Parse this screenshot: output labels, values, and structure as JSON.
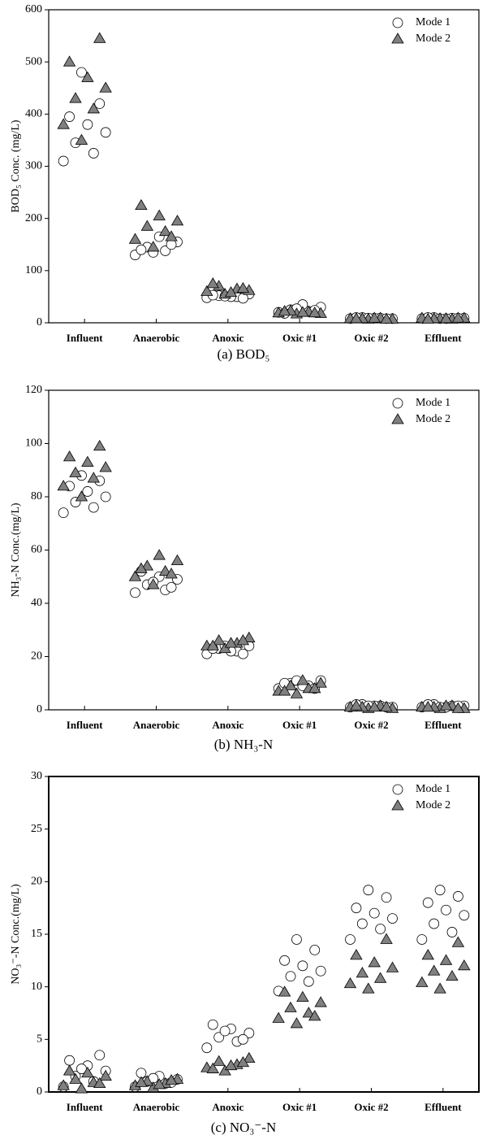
{
  "chart_data": [
    {
      "type": "scatter",
      "title": "(a)  BOD₅",
      "y_label": "BOD₅ Conc. (mg/L)",
      "categories": [
        "Influent",
        "Anaerobic",
        "Anoxic",
        "Oxic #1",
        "Oxic #2",
        "Effluent"
      ],
      "ylim": [
        0,
        600
      ],
      "yticks": [
        0,
        100,
        200,
        300,
        400,
        500,
        600
      ],
      "legend": "upper right",
      "series": [
        {
          "name": "Mode 1",
          "marker": "circle",
          "color": "#ffffff",
          "values": [
            [
              310,
              325,
              345,
              365,
              380,
              395,
              420,
              480
            ],
            [
              130,
              138,
              145,
              155,
              165,
              140,
              150,
              135
            ],
            [
              48,
              50,
              52,
              55,
              50,
              53,
              47,
              51
            ],
            [
              20,
              22,
              25,
              30,
              35,
              18,
              24,
              27
            ],
            [
              8,
              9,
              10,
              8,
              9,
              10,
              8,
              9
            ],
            [
              8,
              9,
              10,
              9,
              8,
              10,
              9,
              8
            ]
          ]
        },
        {
          "name": "Mode 2",
          "marker": "triangle",
          "color": "#808080",
          "values": [
            [
              350,
              380,
              410,
              430,
              450,
              470,
              500,
              545
            ],
            [
              145,
              160,
              175,
              185,
              195,
              205,
              225,
              165
            ],
            [
              55,
              60,
              65,
              70,
              62,
              58,
              75,
              66
            ],
            [
              17,
              19,
              21,
              23,
              18,
              20,
              22,
              19
            ],
            [
              7,
              8,
              9,
              8,
              7,
              9,
              8,
              7
            ],
            [
              8,
              9,
              7,
              8,
              9,
              8,
              7,
              9
            ]
          ]
        }
      ]
    },
    {
      "type": "scatter",
      "title": "(b)  NH₃-N",
      "y_label": "NH₃-N  Conc.(mg/L)",
      "categories": [
        "Influent",
        "Anaerobic",
        "Anoxic",
        "Oxic #1",
        "Oxic #2",
        "Effluent"
      ],
      "ylim": [
        0,
        120
      ],
      "yticks": [
        0,
        20,
        40,
        60,
        80,
        100,
        120
      ],
      "legend": "upper right",
      "series": [
        {
          "name": "Mode 1",
          "marker": "circle",
          "color": "#ffffff",
          "values": [
            [
              74,
              76,
              78,
              80,
              82,
              84,
              86,
              88
            ],
            [
              44,
              45,
              47,
              49,
              50,
              52,
              46,
              48
            ],
            [
              21,
              22,
              23,
              24,
              22,
              23,
              21,
              24
            ],
            [
              8,
              9,
              10,
              11,
              9,
              10,
              8,
              11
            ],
            [
              1,
              1.5,
              2,
              1,
              1.5,
              2,
              1,
              1.5
            ],
            [
              1,
              1.5,
              2,
              1.5,
              1,
              2,
              1.5,
              1
            ]
          ]
        },
        {
          "name": "Mode 2",
          "marker": "triangle",
          "color": "#808080",
          "values": [
            [
              80,
              84,
              87,
              89,
              91,
              93,
              95,
              99
            ],
            [
              47,
              50,
              52,
              54,
              56,
              58,
              53,
              51
            ],
            [
              23,
              24,
              25,
              26,
              27,
              25,
              24,
              26
            ],
            [
              6,
              7,
              8,
              9,
              10,
              11,
              7,
              8
            ],
            [
              0.5,
              1,
              1.5,
              1,
              0.5,
              1,
              1.5,
              1
            ],
            [
              0.5,
              1,
              1.5,
              1,
              0.5,
              1.5,
              1,
              0.5
            ]
          ]
        }
      ]
    },
    {
      "type": "scatter",
      "title": "(c)  NO₃⁻-N",
      "y_label": "NO₃⁻-N  Conc.(mg/L)",
      "categories": [
        "Influent",
        "Anaerobic",
        "Anoxic",
        "Oxic #1",
        "Oxic #2",
        "Effluent"
      ],
      "ylim": [
        0,
        30
      ],
      "yticks": [
        0,
        5,
        10,
        15,
        20,
        25,
        30
      ],
      "legend": "upper right",
      "series": [
        {
          "name": "Mode 1",
          "marker": "circle",
          "color": "#ffffff",
          "values": [
            [
              0.5,
              1,
              1.5,
              2,
              2.5,
              3,
              3.5,
              2.2
            ],
            [
              0.5,
              0.8,
              1,
              1.2,
              1.5,
              1.8,
              0.9,
              1.3
            ],
            [
              4.2,
              4.8,
              5.2,
              5.6,
              6,
              6.4,
              5,
              5.8
            ],
            [
              9.6,
              10.5,
              11,
              11.5,
              12,
              12.5,
              13.5,
              14.5
            ],
            [
              14.5,
              15.5,
              16,
              16.5,
              17,
              17.5,
              18.5,
              19.2
            ],
            [
              14.5,
              15.2,
              16,
              16.8,
              17.3,
              18,
              18.6,
              19.2
            ]
          ]
        },
        {
          "name": "Mode 2",
          "marker": "triangle",
          "color": "#808080",
          "values": [
            [
              0.3,
              0.6,
              0.9,
              1.2,
              1.5,
              1.8,
              2,
              0.8
            ],
            [
              0.4,
              0.6,
              0.8,
              1,
              1.2,
              0.7,
              0.9,
              1.1
            ],
            [
              2,
              2.3,
              2.6,
              2.9,
              3.2,
              2.5,
              2.2,
              2.8
            ],
            [
              6.5,
              7,
              7.5,
              8,
              8.5,
              9,
              9.5,
              7.2
            ],
            [
              9.8,
              10.3,
              10.8,
              11.3,
              11.8,
              12.3,
              13,
              14.5
            ],
            [
              9.8,
              10.4,
              11,
              11.5,
              12,
              12.5,
              13,
              14.2
            ]
          ]
        }
      ]
    }
  ]
}
